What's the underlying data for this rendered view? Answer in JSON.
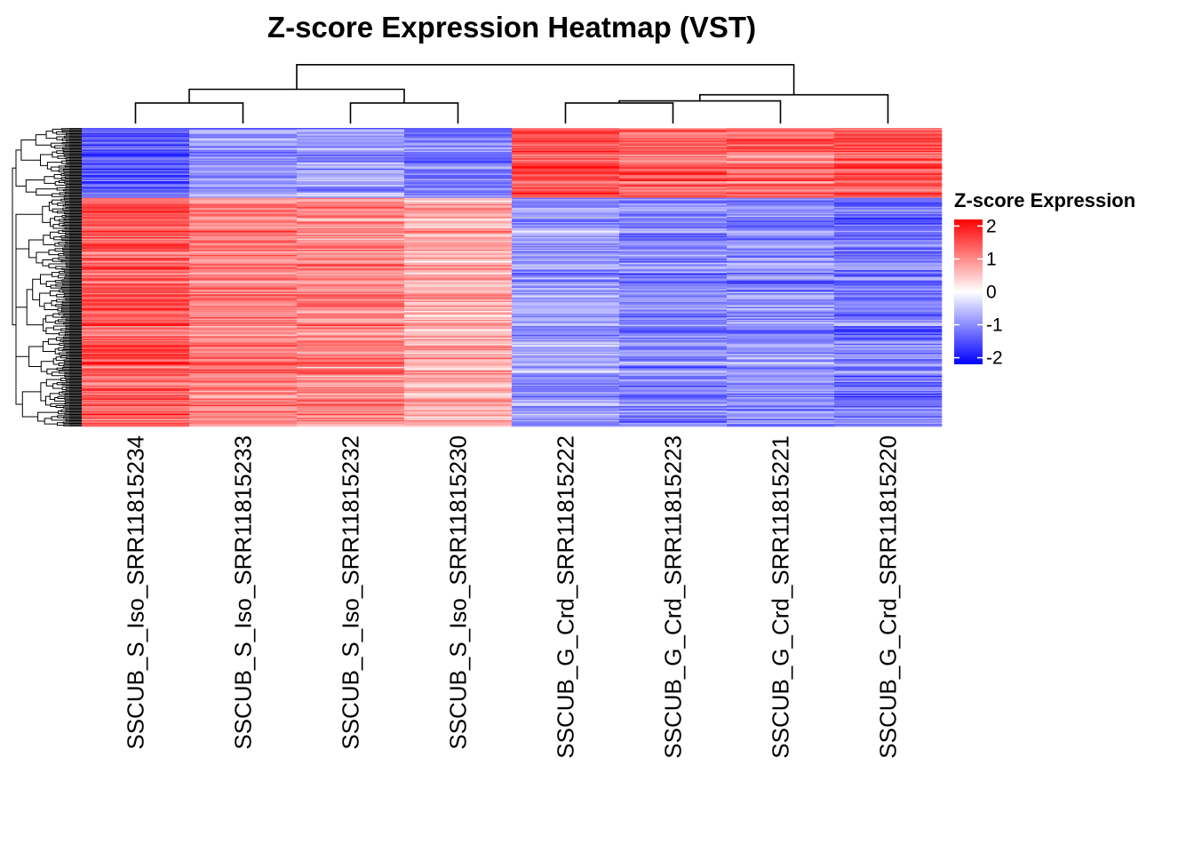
{
  "chart_data": {
    "type": "heatmap",
    "title": "Z-score Expression Heatmap (VST)",
    "columns": [
      "SSCUB_S_Iso_SRR11815234",
      "SSCUB_S_Iso_SRR11815233",
      "SSCUB_S_Iso_SRR11815232",
      "SSCUB_S_Iso_SRR11815230",
      "SSCUB_G_Crd_SRR11815222",
      "SSCUB_G_Crd_SRR11815223",
      "SSCUB_G_Crd_SRR11815221",
      "SSCUB_G_Crd_SRR11815220"
    ],
    "legend": {
      "title": "Z-score Expression",
      "ticks": [
        "2",
        "1",
        "0",
        "-1",
        "-2"
      ],
      "tick_values": [
        2,
        1,
        0,
        -1,
        -2
      ],
      "range": [
        -2.2,
        2.2
      ]
    },
    "colors": {
      "low": "#0000FF",
      "mid": "#FFFFFF",
      "high": "#FF0000"
    },
    "row_clusters": [
      {
        "rows": 55,
        "means": [
          -1.5,
          -1.0,
          -0.9,
          -1.2,
          1.5,
          1.3,
          1.2,
          1.4
        ]
      },
      {
        "rows": 180,
        "means": [
          1.4,
          1.1,
          1.0,
          0.7,
          -0.9,
          -1.1,
          -1.0,
          -1.2
        ]
      }
    ],
    "column_dendrogram": {
      "merges": [
        [
          0,
          1,
          0.3
        ],
        [
          2,
          3,
          0.3
        ],
        [
          -1,
          -2,
          0.5
        ],
        [
          4,
          5,
          0.3
        ],
        [
          -4,
          6,
          0.33
        ],
        [
          -5,
          7,
          0.42
        ],
        [
          -3,
          -6,
          0.86
        ]
      ]
    }
  }
}
